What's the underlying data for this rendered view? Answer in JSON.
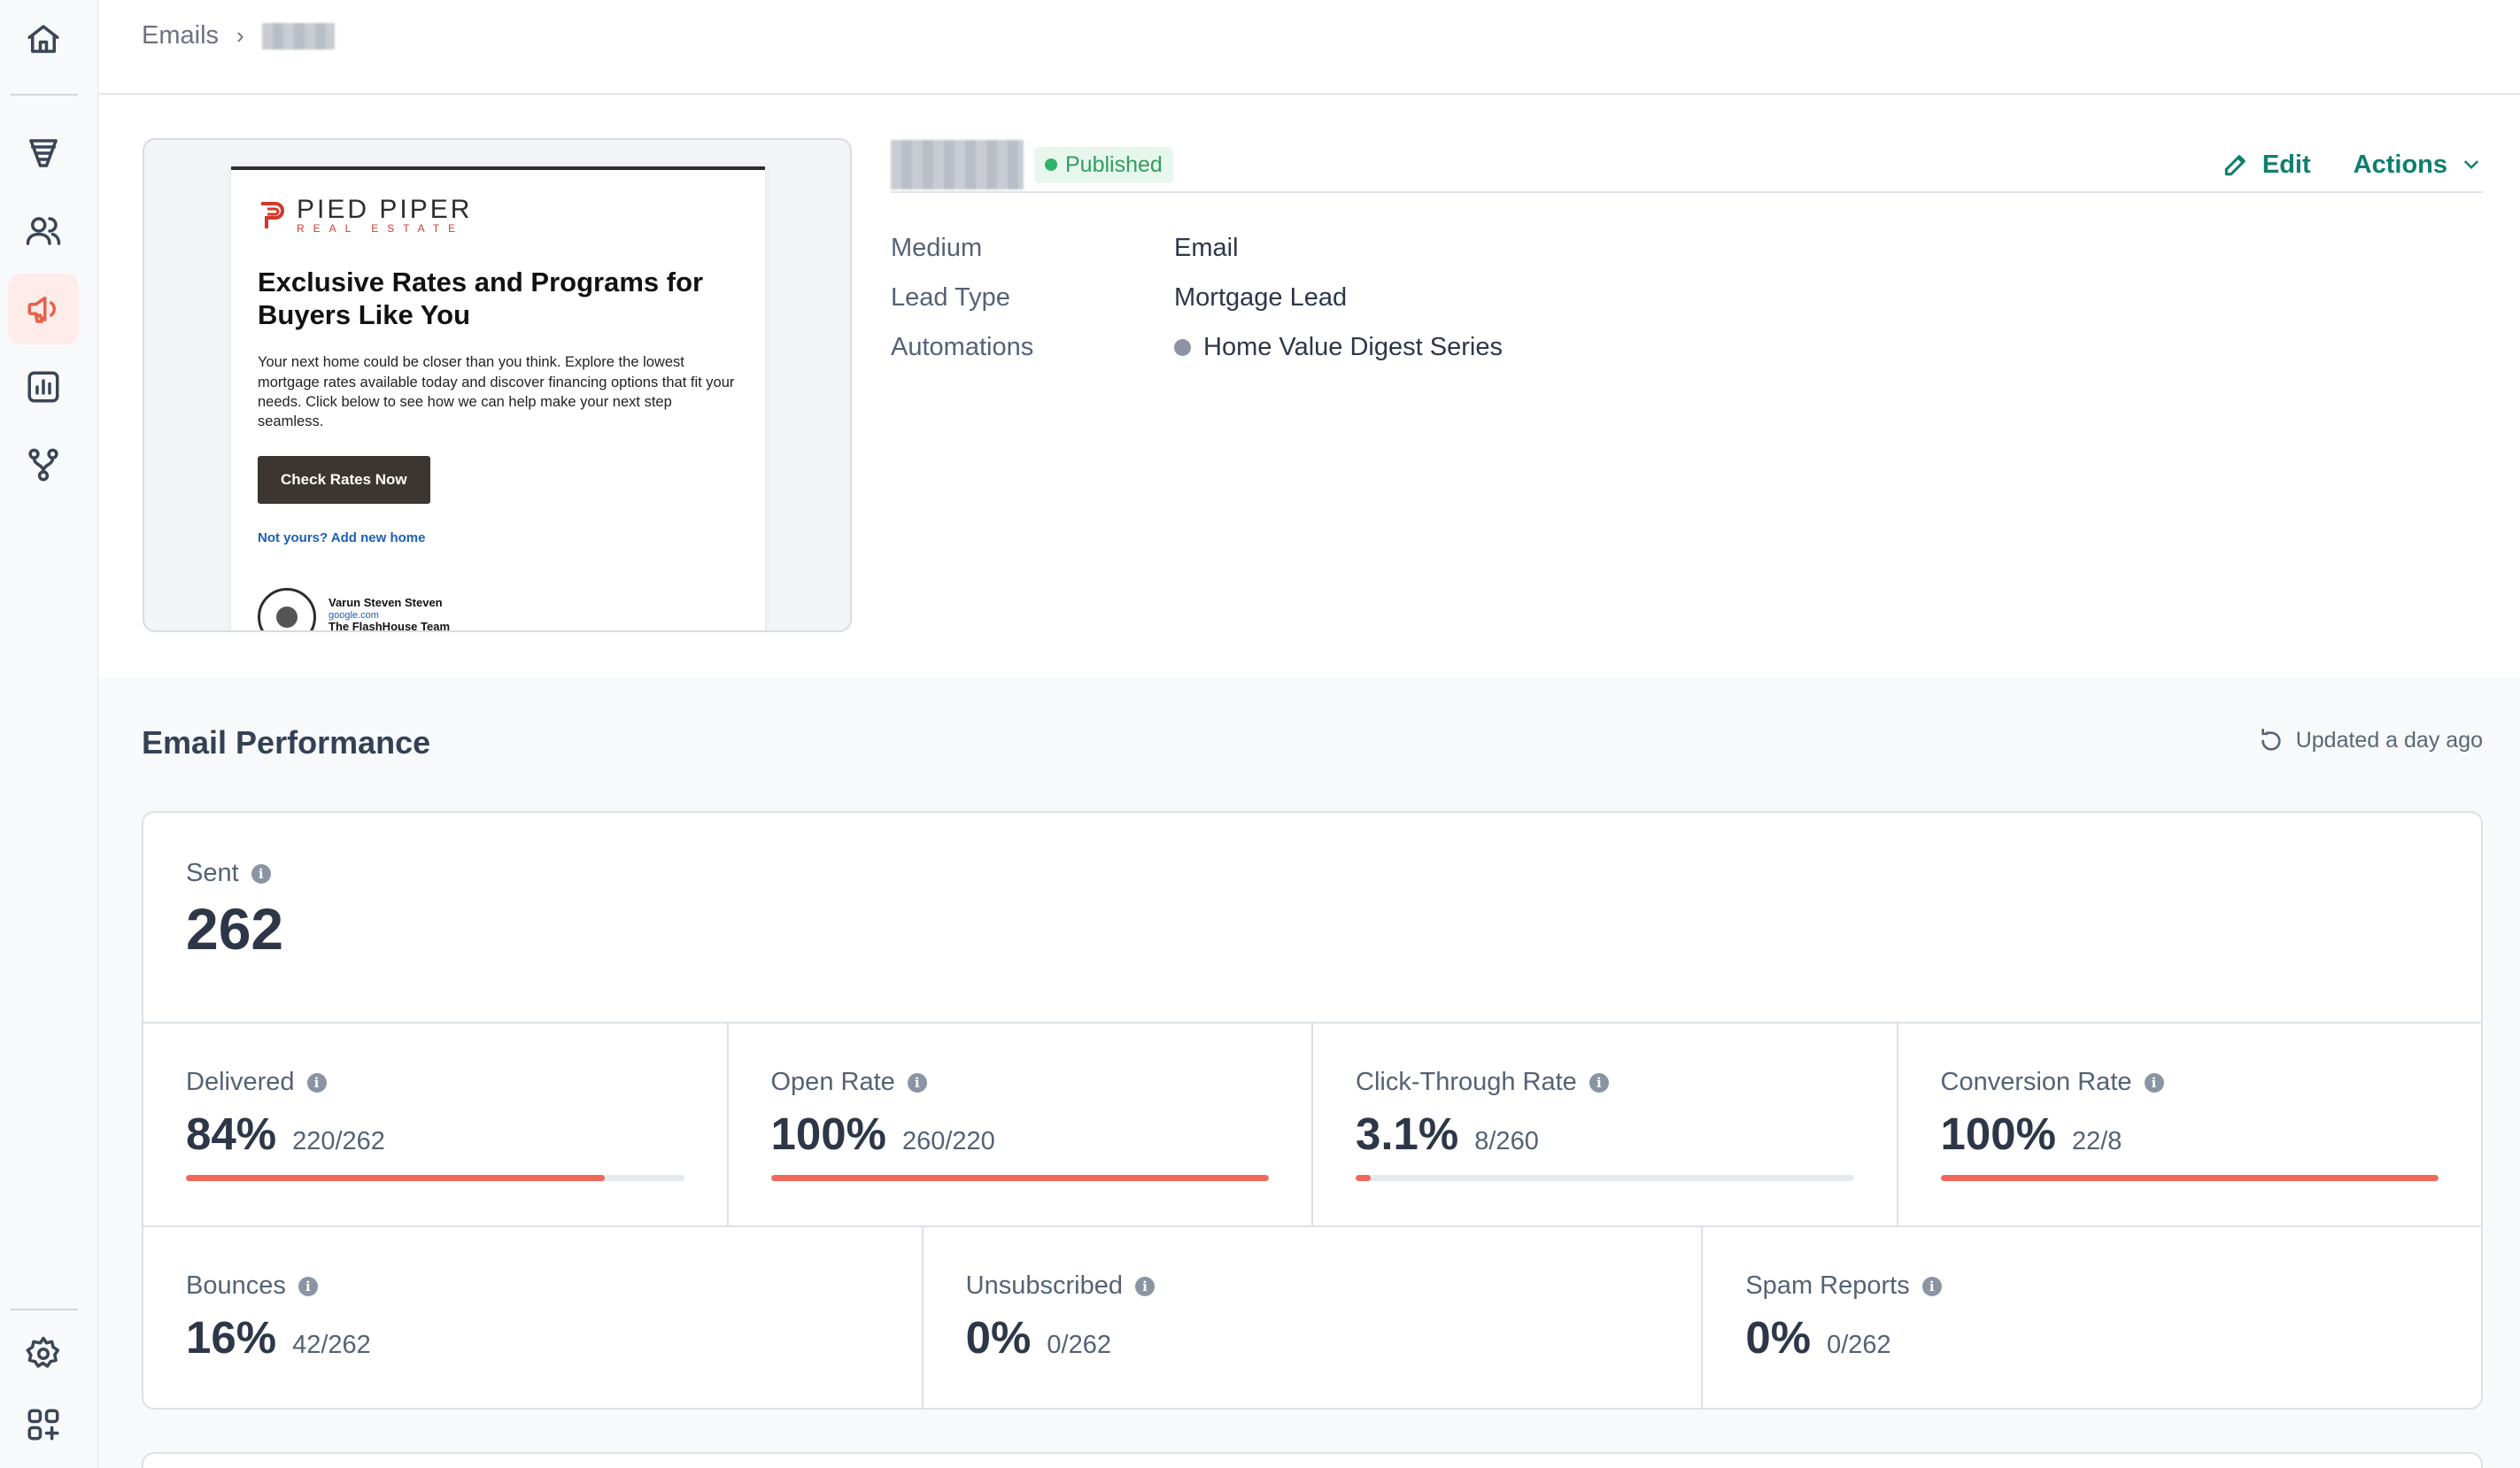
{
  "sidebar": {
    "icons": [
      "home-icon",
      "funnel-icon",
      "users-icon",
      "megaphone-icon",
      "chart-icon",
      "flow-icon",
      "gear-icon",
      "apps-add-icon"
    ],
    "active": "megaphone-icon",
    "accent": "#e8604c"
  },
  "breadcrumb": {
    "root": "Emails",
    "separator": "›"
  },
  "email_preview": {
    "logo_name": "PIED PIPER",
    "logo_sub": "REAL ESTATE",
    "headline": "Exclusive Rates and Programs for Buyers Like You",
    "body": "Your next home could be closer than you think. Explore the lowest mortgage rates available today and discover financing options that fit your needs. Click below to see how we can help make your next step seamless.",
    "cta": "Check Rates Now",
    "link": "Not yours? Add new home",
    "signature_name": "Varun Steven Steven",
    "signature_site": "google.com",
    "signature_team": "The FlashHouse Team"
  },
  "header": {
    "status": "Published",
    "edit_label": "Edit",
    "actions_label": "Actions"
  },
  "details": [
    {
      "label": "Medium",
      "value": "Email"
    },
    {
      "label": "Lead Type",
      "value": "Mortgage Lead"
    },
    {
      "label": "Automations",
      "value": "Home Value Digest Series"
    }
  ],
  "performance": {
    "title": "Email Performance",
    "updated": "Updated a day ago",
    "sent_label": "Sent",
    "sent_value": "262",
    "top_stats": [
      {
        "label": "Delivered",
        "value": "84%",
        "fraction": "220/262",
        "progress": 0.84
      },
      {
        "label": "Open Rate",
        "value": "100%",
        "fraction": "260/220",
        "progress": 1.0
      },
      {
        "label": "Click-Through Rate",
        "value": "3.1%",
        "fraction": "8/260",
        "progress": 0.031
      },
      {
        "label": "Conversion Rate",
        "value": "100%",
        "fraction": "22/8",
        "progress": 1.0
      }
    ],
    "bottom_stats": [
      {
        "label": "Bounces",
        "value": "16%",
        "fraction": "42/262"
      },
      {
        "label": "Unsubscribed",
        "value": "0%",
        "fraction": "0/262"
      },
      {
        "label": "Spam Reports",
        "value": "0%",
        "fraction": "0/262"
      }
    ],
    "bar_color": "#f0685a"
  }
}
